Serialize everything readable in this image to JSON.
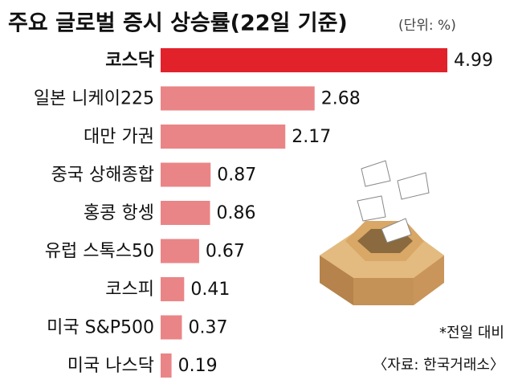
{
  "chart_data": {
    "type": "bar",
    "orientation": "horizontal",
    "title": "주요 글로벌 증시 상승률(22일 기준)",
    "unit": "(단위: %)",
    "categories": [
      "코스닥",
      "일본 니케이225",
      "대만 가권",
      "중국 상해종합",
      "홍콩 항셍",
      "유럽 스톡스50",
      "코스피",
      "미국 S&P500",
      "미국 나스닥"
    ],
    "values": [
      4.99,
      2.68,
      2.17,
      0.87,
      0.86,
      0.67,
      0.41,
      0.37,
      0.19
    ],
    "colors": [
      "#e2222b",
      "#ea8587",
      "#ea8587",
      "#ea8587",
      "#ea8587",
      "#ea8587",
      "#ea8587",
      "#ea8587",
      "#ea8587"
    ],
    "notes": [
      "*전일 대비",
      "〈자료: 한국거래소〉"
    ]
  }
}
